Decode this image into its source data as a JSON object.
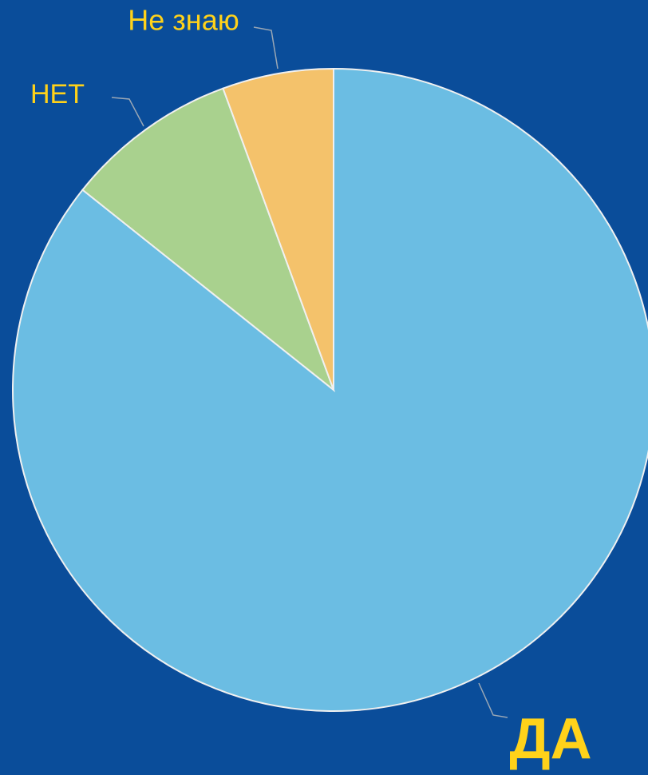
{
  "chart_data": {
    "type": "pie",
    "categories": [
      "ДА",
      "НЕТ",
      "Не знаю"
    ],
    "values": [
      85.7,
      8.7,
      5.6
    ],
    "colors": [
      "#6bbde3",
      "#a9d18e",
      "#f4c26b"
    ]
  }
}
